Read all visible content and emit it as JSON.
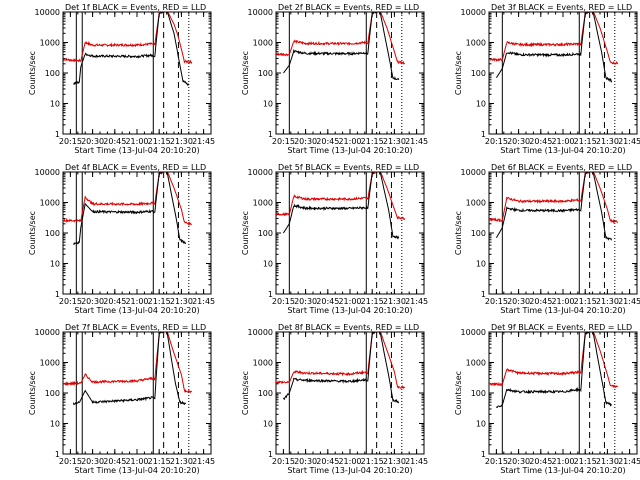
{
  "chart_data": {
    "type": "line",
    "y_scale": "log",
    "ylim": [
      1,
      10000
    ],
    "xlim": [
      "20:10",
      "21:50"
    ],
    "x_ticks": [
      "20:15",
      "20:30",
      "20:45",
      "21:00",
      "21:15",
      "21:30",
      "21:45"
    ],
    "y_ticks": [
      "1",
      "10",
      "100",
      "1000",
      "10000"
    ],
    "xlabel": "Start Time (13-Jul-04 20:10:20)",
    "ylabel": "Counts/sec",
    "colors": {
      "events": "#000000",
      "lld": "#dd0000"
    },
    "panels": [
      {
        "title": "Det 1f BLACK = Events, RED = LLD",
        "solid_lines": [
          "20:19",
          "20:23",
          "21:11"
        ],
        "dashed_lines": [
          "21:18",
          "21:28"
        ],
        "dotted_lines": [
          "21:35"
        ],
        "lld": [
          [
            "20:10",
            280
          ],
          [
            "20:22",
            250
          ],
          [
            "20:25",
            1000
          ],
          [
            "20:30",
            820
          ],
          [
            "21:00",
            830
          ],
          [
            "21:10",
            900
          ],
          [
            "21:12",
            850
          ],
          [
            "21:15",
            9000
          ],
          [
            "21:20",
            12000
          ],
          [
            "21:25",
            4000
          ],
          [
            "21:28",
            1500
          ],
          [
            "21:32",
            240
          ],
          [
            "21:37",
            230
          ]
        ],
        "events": [
          [
            "20:17",
            45
          ],
          [
            "20:21",
            50
          ],
          [
            "20:22",
            160
          ],
          [
            "20:25",
            420
          ],
          [
            "20:30",
            360
          ],
          [
            "21:00",
            350
          ],
          [
            "21:10",
            380
          ],
          [
            "21:12",
            350
          ],
          [
            "21:15",
            9000
          ],
          [
            "21:20",
            12000
          ],
          [
            "21:25",
            2000
          ],
          [
            "21:31",
            55
          ],
          [
            "21:35",
            40
          ]
        ]
      },
      {
        "title": "Det 2f BLACK = Events, RED = LLD",
        "solid_lines": [
          "20:19",
          "21:11"
        ],
        "dashed_lines": [
          "21:18",
          "21:28"
        ],
        "dotted_lines": [
          "21:35"
        ],
        "lld": [
          [
            "20:10",
            420
          ],
          [
            "20:19",
            400
          ],
          [
            "20:22",
            1100
          ],
          [
            "20:30",
            930
          ],
          [
            "21:00",
            920
          ],
          [
            "21:10",
            1000
          ],
          [
            "21:12",
            950
          ],
          [
            "21:15",
            9000
          ],
          [
            "21:20",
            12000
          ],
          [
            "21:25",
            3000
          ],
          [
            "21:30",
            500
          ],
          [
            "21:32",
            230
          ],
          [
            "21:37",
            210
          ]
        ],
        "events": [
          [
            "20:15",
            100
          ],
          [
            "20:19",
            180
          ],
          [
            "20:22",
            520
          ],
          [
            "20:30",
            440
          ],
          [
            "21:00",
            430
          ],
          [
            "21:10",
            460
          ],
          [
            "21:12",
            430
          ],
          [
            "21:15",
            9000
          ],
          [
            "21:20",
            12000
          ],
          [
            "21:26",
            400
          ],
          [
            "21:29",
            70
          ],
          [
            "21:33",
            60
          ]
        ]
      },
      {
        "title": "Det 3f BLACK = Events, RED = LLD",
        "solid_lines": [
          "20:19",
          "21:11"
        ],
        "dashed_lines": [
          "21:18",
          "21:28"
        ],
        "dotted_lines": [
          "21:35"
        ],
        "lld": [
          [
            "20:10",
            280
          ],
          [
            "20:19",
            270
          ],
          [
            "20:22",
            1000
          ],
          [
            "20:30",
            850
          ],
          [
            "21:00",
            860
          ],
          [
            "21:10",
            900
          ],
          [
            "21:12",
            850
          ],
          [
            "21:15",
            9000
          ],
          [
            "21:20",
            12000
          ],
          [
            "21:25",
            3000
          ],
          [
            "21:30",
            500
          ],
          [
            "21:32",
            220
          ],
          [
            "21:37",
            210
          ]
        ],
        "events": [
          [
            "20:15",
            70
          ],
          [
            "20:19",
            140
          ],
          [
            "20:22",
            480
          ],
          [
            "20:30",
            400
          ],
          [
            "21:00",
            390
          ],
          [
            "21:10",
            420
          ],
          [
            "21:12",
            400
          ],
          [
            "21:15",
            9000
          ],
          [
            "21:20",
            12000
          ],
          [
            "21:26",
            500
          ],
          [
            "21:29",
            70
          ],
          [
            "21:33",
            55
          ]
        ]
      },
      {
        "title": "Det 4f BLACK = Events, RED = LLD",
        "solid_lines": [
          "20:19",
          "20:23",
          "21:11"
        ],
        "dashed_lines": [
          "21:18",
          "21:28"
        ],
        "dotted_lines": [
          "21:35"
        ],
        "lld": [
          [
            "20:10",
            260
          ],
          [
            "20:22",
            250
          ],
          [
            "20:25",
            1500
          ],
          [
            "20:30",
            900
          ],
          [
            "21:00",
            880
          ],
          [
            "21:10",
            950
          ],
          [
            "21:12",
            900
          ],
          [
            "21:15",
            9000
          ],
          [
            "21:20",
            12000
          ],
          [
            "21:25",
            3000
          ],
          [
            "21:30",
            600
          ],
          [
            "21:32",
            220
          ],
          [
            "21:37",
            200
          ]
        ],
        "events": [
          [
            "20:17",
            45
          ],
          [
            "20:21",
            50
          ],
          [
            "20:22",
            150
          ],
          [
            "20:25",
            900
          ],
          [
            "20:30",
            500
          ],
          [
            "21:00",
            480
          ],
          [
            "21:10",
            520
          ],
          [
            "21:12",
            480
          ],
          [
            "21:15",
            9000
          ],
          [
            "21:20",
            12000
          ],
          [
            "21:26",
            400
          ],
          [
            "21:29",
            60
          ],
          [
            "21:33",
            45
          ]
        ]
      },
      {
        "title": "Det 5f BLACK = Events, RED = LLD",
        "solid_lines": [
          "20:19",
          "21:11"
        ],
        "dashed_lines": [
          "21:18",
          "21:28"
        ],
        "dotted_lines": [
          "21:35"
        ],
        "lld": [
          [
            "20:10",
            420
          ],
          [
            "20:19",
            400
          ],
          [
            "20:22",
            1600
          ],
          [
            "20:30",
            1300
          ],
          [
            "21:00",
            1300
          ],
          [
            "21:10",
            1400
          ],
          [
            "21:12",
            1300
          ],
          [
            "21:15",
            9000
          ],
          [
            "21:20",
            12000
          ],
          [
            "21:25",
            3000
          ],
          [
            "21:30",
            600
          ],
          [
            "21:32",
            320
          ],
          [
            "21:37",
            300
          ]
        ],
        "events": [
          [
            "20:15",
            100
          ],
          [
            "20:19",
            200
          ],
          [
            "20:22",
            800
          ],
          [
            "20:30",
            650
          ],
          [
            "21:00",
            640
          ],
          [
            "21:10",
            680
          ],
          [
            "21:12",
            640
          ],
          [
            "21:15",
            9000
          ],
          [
            "21:20",
            12000
          ],
          [
            "21:26",
            600
          ],
          [
            "21:29",
            80
          ],
          [
            "21:33",
            70
          ]
        ]
      },
      {
        "title": "Det 6f BLACK = Events, RED = LLD",
        "solid_lines": [
          "20:19",
          "21:11"
        ],
        "dashed_lines": [
          "21:18",
          "21:28"
        ],
        "dotted_lines": [
          "21:35"
        ],
        "lld": [
          [
            "20:10",
            280
          ],
          [
            "20:19",
            260
          ],
          [
            "20:22",
            1400
          ],
          [
            "20:30",
            1100
          ],
          [
            "21:00",
            1100
          ],
          [
            "21:10",
            1200
          ],
          [
            "21:12",
            1100
          ],
          [
            "21:15",
            9000
          ],
          [
            "21:20",
            12000
          ],
          [
            "21:25",
            3000
          ],
          [
            "21:30",
            600
          ],
          [
            "21:32",
            250
          ],
          [
            "21:37",
            230
          ]
        ],
        "events": [
          [
            "20:15",
            70
          ],
          [
            "20:19",
            150
          ],
          [
            "20:22",
            650
          ],
          [
            "20:30",
            550
          ],
          [
            "21:00",
            540
          ],
          [
            "21:10",
            580
          ],
          [
            "21:12",
            540
          ],
          [
            "21:15",
            9000
          ],
          [
            "21:20",
            12000
          ],
          [
            "21:26",
            500
          ],
          [
            "21:29",
            70
          ],
          [
            "21:33",
            60
          ]
        ]
      },
      {
        "title": "Det 7f BLACK = Events, RED = LLD",
        "solid_lines": [
          "20:19",
          "20:23",
          "21:11"
        ],
        "dashed_lines": [
          "21:18",
          "21:28"
        ],
        "dotted_lines": [
          "21:35"
        ],
        "lld": [
          [
            "20:10",
            200
          ],
          [
            "20:22",
            210
          ],
          [
            "20:25",
            400
          ],
          [
            "20:30",
            230
          ],
          [
            "21:00",
            250
          ],
          [
            "21:10",
            300
          ],
          [
            "21:12",
            280
          ],
          [
            "21:15",
            9000
          ],
          [
            "21:20",
            12000
          ],
          [
            "21:25",
            2000
          ],
          [
            "21:30",
            400
          ],
          [
            "21:32",
            120
          ],
          [
            "21:37",
            110
          ]
        ],
        "events": [
          [
            "20:17",
            45
          ],
          [
            "20:21",
            50
          ],
          [
            "20:22",
            60
          ],
          [
            "20:25",
            120
          ],
          [
            "20:30",
            50
          ],
          [
            "21:00",
            60
          ],
          [
            "21:10",
            70
          ],
          [
            "21:12",
            65
          ],
          [
            "21:15",
            9000
          ],
          [
            "21:20",
            12000
          ],
          [
            "21:26",
            200
          ],
          [
            "21:29",
            50
          ],
          [
            "21:33",
            45
          ]
        ]
      },
      {
        "title": "Det 8f BLACK = Events, RED = LLD",
        "solid_lines": [
          "20:19",
          "21:11"
        ],
        "dashed_lines": [
          "21:18",
          "21:28"
        ],
        "dotted_lines": [
          "21:35"
        ],
        "lld": [
          [
            "20:10",
            230
          ],
          [
            "20:19",
            220
          ],
          [
            "20:22",
            500
          ],
          [
            "20:30",
            450
          ],
          [
            "21:00",
            420
          ],
          [
            "21:10",
            480
          ],
          [
            "21:12",
            450
          ],
          [
            "21:15",
            9000
          ],
          [
            "21:20",
            12000
          ],
          [
            "21:25",
            2500
          ],
          [
            "21:30",
            500
          ],
          [
            "21:32",
            160
          ],
          [
            "21:37",
            150
          ]
        ],
        "events": [
          [
            "20:15",
            60
          ],
          [
            "20:19",
            100
          ],
          [
            "20:22",
            280
          ],
          [
            "20:30",
            260
          ],
          [
            "21:00",
            240
          ],
          [
            "21:10",
            270
          ],
          [
            "21:12",
            250
          ],
          [
            "21:15",
            9000
          ],
          [
            "21:20",
            12000
          ],
          [
            "21:26",
            400
          ],
          [
            "21:29",
            60
          ],
          [
            "21:33",
            50
          ]
        ]
      },
      {
        "title": "Det 9f BLACK = Events, RED = LLD",
        "solid_lines": [
          "20:19",
          "21:11"
        ],
        "dashed_lines": [
          "21:18",
          "21:28"
        ],
        "dotted_lines": [
          "21:35"
        ],
        "lld": [
          [
            "20:10",
            200
          ],
          [
            "20:19",
            190
          ],
          [
            "20:22",
            600
          ],
          [
            "20:30",
            450
          ],
          [
            "21:00",
            430
          ],
          [
            "21:10",
            480
          ],
          [
            "21:12",
            450
          ],
          [
            "21:15",
            9000
          ],
          [
            "21:20",
            12000
          ],
          [
            "21:25",
            2500
          ],
          [
            "21:30",
            400
          ],
          [
            "21:32",
            170
          ],
          [
            "21:37",
            160
          ]
        ],
        "events": [
          [
            "20:15",
            35
          ],
          [
            "20:19",
            40
          ],
          [
            "20:22",
            130
          ],
          [
            "20:30",
            110
          ],
          [
            "21:00",
            110
          ],
          [
            "21:10",
            130
          ],
          [
            "21:12",
            120
          ],
          [
            "21:15",
            9000
          ],
          [
            "21:20",
            12000
          ],
          [
            "21:26",
            300
          ],
          [
            "21:29",
            50
          ],
          [
            "21:33",
            40
          ]
        ]
      }
    ]
  }
}
